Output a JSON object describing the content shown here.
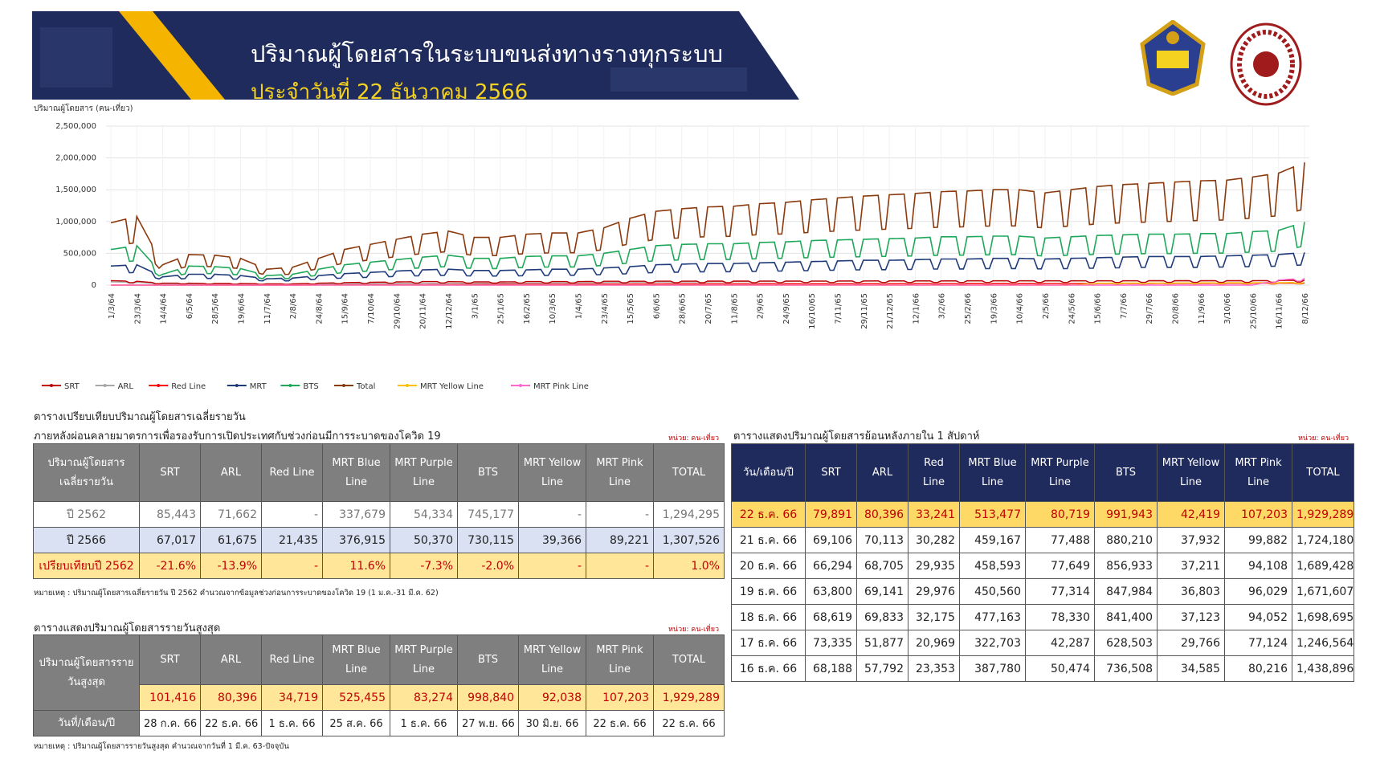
{
  "banner": {
    "title": "ปริมาณผู้โดยสารในระบบขนส่งทางรางทุกระบบ",
    "subtitle": "ประจำวันที่ 22 ธันวาคม 2566"
  },
  "colors": {
    "SRT": "#c00000",
    "ARL": "#a6a6a6",
    "Red Line": "#ff0000",
    "MRT": "#1f3b7a",
    "BTS": "#1fa85a",
    "Total": "#8b3a0e",
    "MRT Yellow Line": "#ffc000",
    "MRT Pink Line": "#ff66cc",
    "banner": "#1f2b5c",
    "accent": "#f4d21f"
  },
  "chart_data": {
    "type": "line",
    "ylabel": "ปริมาณผู้โดยสาร (คน-เที่ยว)",
    "ylim": [
      0,
      2500000
    ],
    "yticks": [
      "2,500,000",
      "2,000,000",
      "1,500,000",
      "1,000,000",
      "500,000",
      "0"
    ],
    "x_tick_labels": [
      "1/3/64",
      "23/3/64",
      "14/4/64",
      "6/5/64",
      "28/5/64",
      "19/6/64",
      "11/7/64",
      "2/8/64",
      "24/8/64",
      "15/9/64",
      "7/10/64",
      "29/10/64",
      "20/11/64",
      "12/12/64",
      "3/1/65",
      "25/1/65",
      "16/2/65",
      "10/3/65",
      "1/4/65",
      "23/4/65",
      "15/5/65",
      "6/6/65",
      "28/6/65",
      "20/7/65",
      "11/8/65",
      "2/9/65",
      "24/9/65",
      "16/10/65",
      "7/11/65",
      "29/11/65",
      "21/12/65",
      "12/1/66",
      "3/2/66",
      "25/2/66",
      "19/3/66",
      "10/4/66",
      "2/5/66",
      "24/5/66",
      "15/6/66",
      "7/7/66",
      "29/7/66",
      "20/8/66",
      "11/9/66",
      "3/10/66",
      "25/10/66",
      "16/11/66",
      "8/12/66"
    ],
    "series": [
      {
        "name": "SRT",
        "weekly_high": [
          70000,
          60000,
          30000,
          30000,
          25000,
          25000,
          20000,
          20000,
          30000,
          40000,
          45000,
          50000,
          55000,
          55000,
          50000,
          50000,
          55000,
          55000,
          55000,
          60000,
          60000,
          62000,
          62000,
          63000,
          63000,
          64000,
          64000,
          65000,
          65000,
          66000,
          67000,
          67000,
          67000,
          68000,
          68000,
          68000,
          68000,
          68000,
          68000,
          68000,
          69000,
          69000,
          69000,
          69000,
          70000,
          72000,
          79891
        ]
      },
      {
        "name": "ARL",
        "weekly_high": [
          50000,
          45000,
          15000,
          15000,
          12000,
          12000,
          10000,
          10000,
          15000,
          20000,
          25000,
          28000,
          30000,
          30000,
          28000,
          28000,
          32000,
          35000,
          38000,
          42000,
          45000,
          48000,
          50000,
          52000,
          54000,
          56000,
          58000,
          60000,
          60000,
          62000,
          62000,
          62000,
          63000,
          64000,
          64000,
          64000,
          64000,
          65000,
          65000,
          65000,
          66000,
          66000,
          66000,
          67000,
          68000,
          70000,
          80396
        ]
      },
      {
        "name": "Red Line",
        "weekly_high": [
          0,
          0,
          0,
          0,
          0,
          0,
          0,
          0,
          2000,
          5000,
          6000,
          7000,
          8000,
          9000,
          10000,
          12000,
          13000,
          14000,
          15000,
          16000,
          17000,
          18000,
          19000,
          20000,
          20000,
          21000,
          21000,
          22000,
          22000,
          23000,
          23000,
          24000,
          24000,
          25000,
          25000,
          25000,
          26000,
          26000,
          26000,
          27000,
          27000,
          28000,
          28000,
          29000,
          30000,
          31000,
          33241
        ]
      },
      {
        "name": "MRT",
        "weekly_high": [
          300000,
          320000,
          130000,
          170000,
          170000,
          150000,
          100000,
          110000,
          150000,
          180000,
          200000,
          220000,
          240000,
          250000,
          230000,
          230000,
          240000,
          250000,
          250000,
          270000,
          290000,
          320000,
          330000,
          340000,
          340000,
          350000,
          360000,
          370000,
          380000,
          390000,
          390000,
          400000,
          410000,
          410000,
          420000,
          420000,
          410000,
          420000,
          430000,
          440000,
          450000,
          450000,
          450000,
          460000,
          470000,
          480000,
          513477
        ]
      },
      {
        "name": "BTS",
        "weekly_high": [
          560000,
          620000,
          170000,
          300000,
          290000,
          260000,
          150000,
          170000,
          250000,
          320000,
          360000,
          400000,
          440000,
          470000,
          420000,
          420000,
          450000,
          460000,
          460000,
          500000,
          560000,
          620000,
          640000,
          650000,
          650000,
          670000,
          680000,
          700000,
          710000,
          720000,
          730000,
          740000,
          760000,
          760000,
          770000,
          770000,
          740000,
          760000,
          780000,
          790000,
          800000,
          800000,
          810000,
          810000,
          840000,
          860000,
          991943
        ]
      },
      {
        "name": "Total",
        "weekly_high": [
          980000,
          1080000,
          320000,
          480000,
          470000,
          420000,
          250000,
          280000,
          420000,
          560000,
          640000,
          720000,
          800000,
          850000,
          750000,
          750000,
          800000,
          820000,
          820000,
          900000,
          1050000,
          1160000,
          1200000,
          1230000,
          1240000,
          1280000,
          1300000,
          1340000,
          1370000,
          1400000,
          1420000,
          1440000,
          1470000,
          1480000,
          1500000,
          1500000,
          1450000,
          1500000,
          1550000,
          1580000,
          1600000,
          1620000,
          1640000,
          1650000,
          1700000,
          1760000,
          1929289
        ]
      },
      {
        "name": "MRT Yellow Line",
        "weekly_high": [
          0,
          0,
          0,
          0,
          0,
          0,
          0,
          0,
          0,
          0,
          0,
          0,
          0,
          0,
          0,
          0,
          0,
          0,
          0,
          0,
          0,
          0,
          0,
          0,
          0,
          0,
          0,
          0,
          0,
          0,
          0,
          0,
          0,
          0,
          0,
          0,
          0,
          0,
          30000,
          32000,
          33000,
          34000,
          35000,
          36000,
          37000,
          38000,
          42419
        ]
      },
      {
        "name": "MRT Pink Line",
        "weekly_high": [
          0,
          0,
          0,
          0,
          0,
          0,
          0,
          0,
          0,
          0,
          0,
          0,
          0,
          0,
          0,
          0,
          0,
          0,
          0,
          0,
          0,
          0,
          0,
          0,
          0,
          0,
          0,
          0,
          0,
          0,
          0,
          0,
          0,
          0,
          0,
          0,
          0,
          0,
          0,
          0,
          0,
          0,
          0,
          0,
          0,
          80000,
          107203
        ]
      }
    ]
  },
  "legend": [
    "SRT",
    "ARL",
    "Red Line",
    "MRT",
    "BTS",
    "Total",
    "MRT Yellow Line",
    "MRT Pink Line"
  ],
  "avg": {
    "title1": "ตารางเปรียบเทียบปริมาณผู้โดยสารเฉลี่ยรายวัน",
    "title2": "ภายหลังผ่อนคลายมาตรการเพื่อรองรับการเปิดประเทศกับช่วงก่อนมีการระบาดของโควิด 19",
    "unit": "หน่วย: คน-เที่ยว",
    "header_first": "ปริมาณผู้โดยสารเฉลี่ยรายวัน",
    "headers": [
      "SRT",
      "ARL",
      "Red Line",
      "MRT Blue Line",
      "MRT Purple Line",
      "BTS",
      "MRT Yellow Line",
      "MRT Pink Line",
      "TOTAL"
    ],
    "rows": [
      {
        "label": "ปี 2562",
        "values": [
          "85,443",
          "71,662",
          "-",
          "337,679",
          "54,334",
          "745,177",
          "-",
          "-",
          "1,294,295"
        ]
      },
      {
        "label": "ปี 2566",
        "values": [
          "67,017",
          "61,675",
          "21,435",
          "376,915",
          "50,370",
          "730,115",
          "39,366",
          "89,221",
          "1,307,526"
        ]
      },
      {
        "label": "เปรียบเทียบปี 2562",
        "values": [
          "-21.6%",
          "-13.9%",
          "-",
          "11.6%",
          "-7.3%",
          "-2.0%",
          "-",
          "-",
          "1.0%"
        ]
      }
    ],
    "note": "หมายเหตุ : ปริมาณผู้โดยสารเฉลี่ยรายวัน ปี 2562 คำนวณจากข้อมูลช่วงก่อนการระบาดของโควิด 19 (1 ม.ค.-31 มี.ค. 62)"
  },
  "peak": {
    "title": "ตารางแสดงปริมาณผู้โดยสารรายวันสูงสุด",
    "unit": "หน่วย: คน-เที่ยว",
    "header_first": "ปริมาณผู้โดยสารรายวันสูงสุด",
    "headers": [
      "SRT",
      "ARL",
      "Red Line",
      "MRT Blue Line",
      "MRT Purple Line",
      "BTS",
      "MRT Yellow Line",
      "MRT Pink Line",
      "TOTAL"
    ],
    "values": [
      "101,416",
      "80,396",
      "34,719",
      "525,455",
      "83,274",
      "998,840",
      "92,038",
      "107,203",
      "1,929,289"
    ],
    "date_label": "วันที่/เดือน/ปี",
    "dates": [
      "28 ก.ค. 66",
      "22 ธ.ค. 66",
      "1 ธ.ค. 66",
      "25 ส.ค. 66",
      "1 ธ.ค. 66",
      "27 พ.ย. 66",
      "30 มิ.ย. 66",
      "22 ธ.ค. 66",
      "22 ธ.ค. 66"
    ],
    "note": "หมายเหตุ : ปริมาณผู้โดยสารรายวันสูงสุด คำนวณจากวันที่ 1 มี.ค. 63-ปัจจุบัน"
  },
  "week": {
    "title": "ตารางแสดงปริมาณผู้โดยสารย้อนหลังภายใน 1 สัปดาห์",
    "unit": "หน่วย: คน-เที่ยว",
    "header_first": "วัน/เดือน/ปี",
    "headers": [
      "SRT",
      "ARL",
      "Red Line",
      "MRT Blue Line",
      "MRT Purple Line",
      "BTS",
      "MRT Yellow Line",
      "MRT Pink Line",
      "TOTAL"
    ],
    "rows": [
      {
        "date": "22 ธ.ค. 66",
        "values": [
          "79,891",
          "80,396",
          "33,241",
          "513,477",
          "80,719",
          "991,943",
          "42,419",
          "107,203",
          "1,929,289"
        ]
      },
      {
        "date": "21 ธ.ค. 66",
        "values": [
          "69,106",
          "70,113",
          "30,282",
          "459,167",
          "77,488",
          "880,210",
          "37,932",
          "99,882",
          "1,724,180"
        ]
      },
      {
        "date": "20 ธ.ค. 66",
        "values": [
          "66,294",
          "68,705",
          "29,935",
          "458,593",
          "77,649",
          "856,933",
          "37,211",
          "94,108",
          "1,689,428"
        ]
      },
      {
        "date": "19 ธ.ค. 66",
        "values": [
          "63,800",
          "69,141",
          "29,976",
          "450,560",
          "77,314",
          "847,984",
          "36,803",
          "96,029",
          "1,671,607"
        ]
      },
      {
        "date": "18 ธ.ค. 66",
        "values": [
          "68,619",
          "69,833",
          "32,175",
          "477,163",
          "78,330",
          "841,400",
          "37,123",
          "94,052",
          "1,698,695"
        ]
      },
      {
        "date": "17 ธ.ค. 66",
        "values": [
          "73,335",
          "51,877",
          "20,969",
          "322,703",
          "42,287",
          "628,503",
          "29,766",
          "77,124",
          "1,246,564"
        ]
      },
      {
        "date": "16 ธ.ค. 66",
        "values": [
          "68,188",
          "57,792",
          "23,353",
          "387,780",
          "50,474",
          "736,508",
          "34,585",
          "80,216",
          "1,438,896"
        ]
      }
    ]
  }
}
